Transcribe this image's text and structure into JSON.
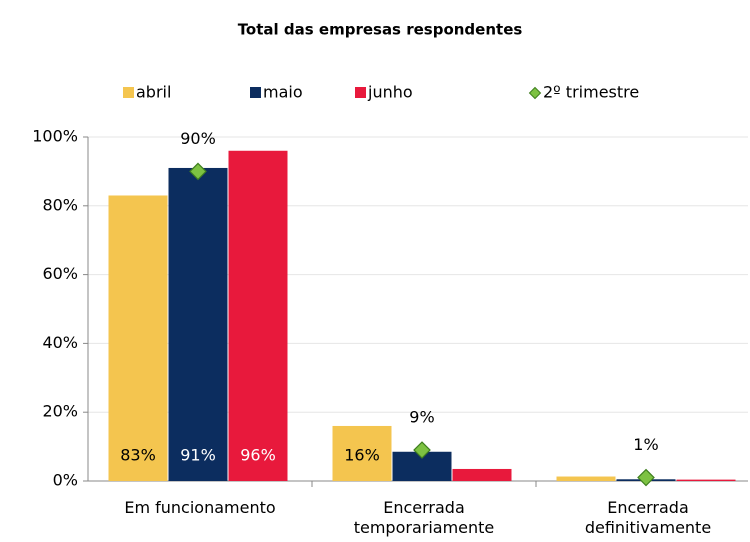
{
  "chart_data": {
    "type": "bar",
    "title": "Total das empresas respondentes",
    "categories": [
      "Em funcionamento",
      "Encerrada temporariamente",
      "Encerrada definitivamente"
    ],
    "series": [
      {
        "name": "abril",
        "type": "bar",
        "color": "#f4c54f",
        "values": [
          83,
          16,
          1.3
        ],
        "value_labels": [
          "83%",
          "16%",
          null
        ]
      },
      {
        "name": "maio",
        "type": "bar",
        "color": "#0c2d5f",
        "values": [
          91,
          8.5,
          0.5
        ],
        "value_labels": [
          "91%",
          null,
          null
        ]
      },
      {
        "name": "junho",
        "type": "bar",
        "color": "#e8193c",
        "values": [
          96,
          3.5,
          0.4
        ],
        "value_labels": [
          "96%",
          null,
          null
        ]
      },
      {
        "name": "2º trimestre",
        "type": "scatter",
        "color": "#7dc242",
        "values": [
          90,
          9,
          1
        ],
        "value_labels": [
          "90%",
          "9%",
          "1%"
        ]
      }
    ],
    "ylim": [
      0,
      100
    ],
    "yticks": [
      {
        "value": 0,
        "label": "0%"
      },
      {
        "value": 20,
        "label": "20%"
      },
      {
        "value": 40,
        "label": "40%"
      },
      {
        "value": 60,
        "label": "60%"
      },
      {
        "value": 80,
        "label": "80%"
      },
      {
        "value": 100,
        "label": "100%"
      }
    ],
    "grid": true,
    "legend": "top"
  }
}
